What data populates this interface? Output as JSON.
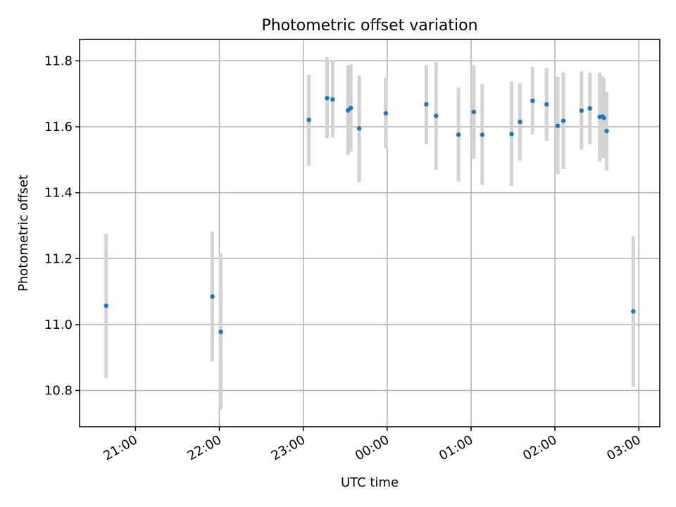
{
  "chart_data": {
    "type": "scatter",
    "title": "Photometric offset variation",
    "xlabel": "UTC time",
    "ylabel": "Photometric offset",
    "x_is_time": true,
    "x_tick_labels": [
      "21:00",
      "22:00",
      "23:00",
      "00:00",
      "01:00",
      "02:00",
      "03:00"
    ],
    "xlim": [
      "20:20",
      "03:15"
    ],
    "ylim": [
      10.69,
      11.865
    ],
    "y_ticks": [
      10.8,
      11.0,
      11.2,
      11.4,
      11.6,
      11.8
    ],
    "y_tick_labels": [
      "10.8",
      "11.0",
      "11.2",
      "11.4",
      "11.6",
      "11.8"
    ],
    "grid": true,
    "colors": {
      "points": "#1f77b4",
      "errorbars": "#d3d3d3"
    },
    "points": [
      {
        "x": "20:39",
        "y": 11.057,
        "y_low": 10.837,
        "y_high": 11.275
      },
      {
        "x": "21:55",
        "y": 11.085,
        "y_low": 10.888,
        "y_high": 11.282
      },
      {
        "x": "22:01",
        "y": 10.978,
        "y_low": 10.742,
        "y_high": 11.214
      },
      {
        "x": "23:04",
        "y": 11.621,
        "y_low": 11.482,
        "y_high": 11.758
      },
      {
        "x": "23:17",
        "y": 11.687,
        "y_low": 11.565,
        "y_high": 11.811
      },
      {
        "x": "23:21",
        "y": 11.683,
        "y_low": 11.567,
        "y_high": 11.8
      },
      {
        "x": "23:32",
        "y": 11.65,
        "y_low": 11.515,
        "y_high": 11.786
      },
      {
        "x": "23:34",
        "y": 11.657,
        "y_low": 11.525,
        "y_high": 11.789
      },
      {
        "x": "23:40",
        "y": 11.595,
        "y_low": 11.432,
        "y_high": 11.756
      },
      {
        "x": "23:59",
        "y": 11.641,
        "y_low": 11.534,
        "y_high": 11.748
      },
      {
        "x": "00:28",
        "y": 11.668,
        "y_low": 11.548,
        "y_high": 11.787
      },
      {
        "x": "00:35",
        "y": 11.633,
        "y_low": 11.47,
        "y_high": 11.796
      },
      {
        "x": "00:51",
        "y": 11.576,
        "y_low": 11.434,
        "y_high": 11.719
      },
      {
        "x": "01:02",
        "y": 11.645,
        "y_low": 11.503,
        "y_high": 11.787
      },
      {
        "x": "01:08",
        "y": 11.576,
        "y_low": 11.424,
        "y_high": 11.73
      },
      {
        "x": "01:29",
        "y": 11.578,
        "y_low": 11.42,
        "y_high": 11.738
      },
      {
        "x": "01:35",
        "y": 11.615,
        "y_low": 11.497,
        "y_high": 11.732
      },
      {
        "x": "01:44",
        "y": 11.679,
        "y_low": 11.577,
        "y_high": 11.782
      },
      {
        "x": "01:54",
        "y": 11.668,
        "y_low": 11.558,
        "y_high": 11.778
      },
      {
        "x": "02:02",
        "y": 11.603,
        "y_low": 11.456,
        "y_high": 11.752
      },
      {
        "x": "02:06",
        "y": 11.618,
        "y_low": 11.472,
        "y_high": 11.765
      },
      {
        "x": "02:19",
        "y": 11.649,
        "y_low": 11.53,
        "y_high": 11.768
      },
      {
        "x": "02:25",
        "y": 11.656,
        "y_low": 11.547,
        "y_high": 11.764
      },
      {
        "x": "02:32",
        "y": 11.63,
        "y_low": 11.495,
        "y_high": 11.764
      },
      {
        "x": "02:34",
        "y": 11.631,
        "y_low": 11.507,
        "y_high": 11.753
      },
      {
        "x": "02:35",
        "y": 11.627,
        "y_low": 11.505,
        "y_high": 11.747
      },
      {
        "x": "02:37",
        "y": 11.587,
        "y_low": 11.467,
        "y_high": 11.707
      },
      {
        "x": "02:56",
        "y": 11.04,
        "y_low": 10.812,
        "y_high": 11.268
      }
    ]
  }
}
